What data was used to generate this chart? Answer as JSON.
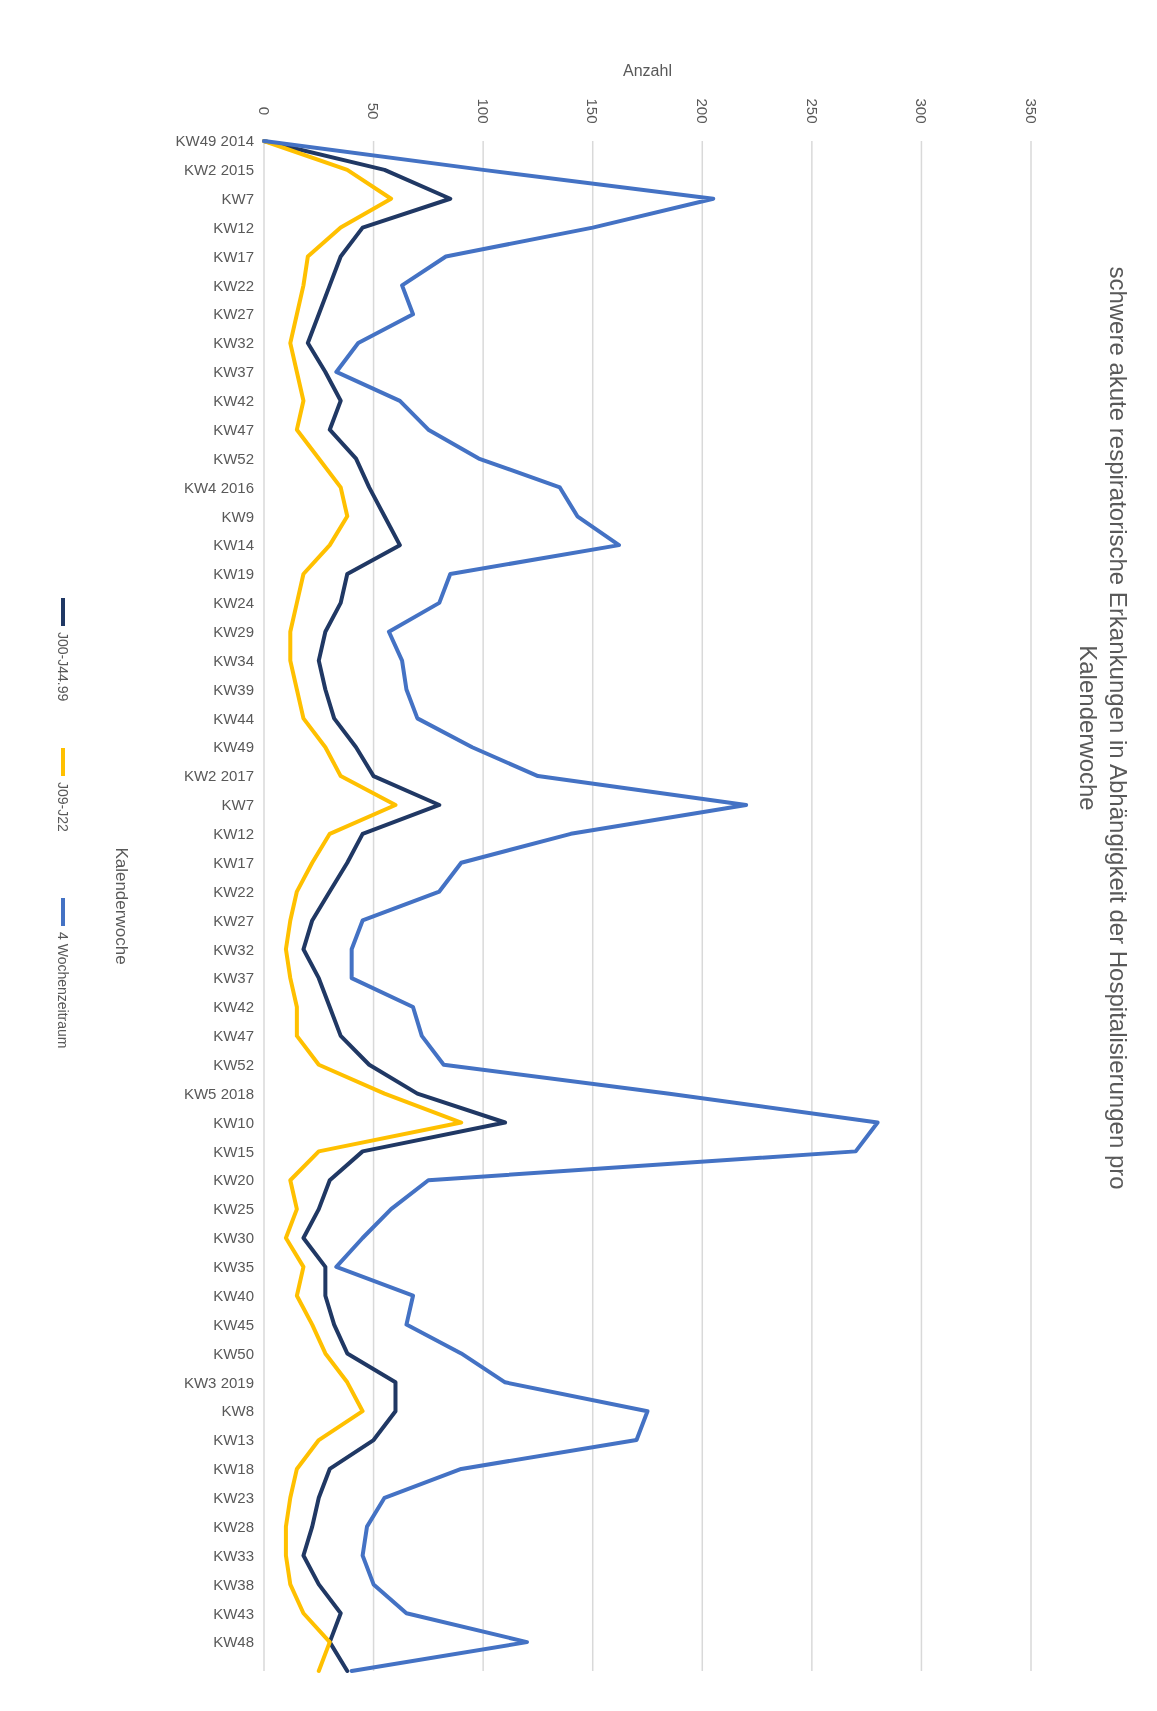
{
  "chart_data": {
    "type": "line",
    "title": "schwere akute respiratorische Erkankungen in Abhängigkeit der Hospitalisierungen pro Kalenderwoche",
    "xlabel": "Anzahl",
    "ylabel": "Kalenderwoche",
    "orientation": "horizontal",
    "categories": [
      "KW49 2014",
      "KW2 2015",
      "KW7",
      "KW12",
      "KW17",
      "KW22",
      "KW27",
      "KW32",
      "KW37",
      "KW42",
      "KW47",
      "KW52",
      "KW4 2016",
      "KW9",
      "KW14",
      "KW19",
      "KW24",
      "KW29",
      "KW34",
      "KW39",
      "KW44",
      "KW49",
      "KW2 2017",
      "KW7",
      "KW12",
      "KW17",
      "KW22",
      "KW27",
      "KW32",
      "KW37",
      "KW42",
      "KW47",
      "KW52",
      "KW5 2018",
      "KW10",
      "KW15",
      "KW20",
      "KW25",
      "KW30",
      "KW35",
      "KW40",
      "KW45",
      "KW50",
      "KW3 2019",
      "KW8",
      "KW13",
      "KW18",
      "KW23",
      "KW28",
      "KW33",
      "KW38",
      "KW43",
      "KW48",
      null
    ],
    "series": [
      {
        "name": "J00-J44.99",
        "color": "#203864",
        "values": [
          0,
          55,
          85,
          45,
          35,
          30,
          25,
          20,
          28,
          35,
          30,
          42,
          48,
          55,
          62,
          38,
          35,
          28,
          25,
          28,
          32,
          42,
          50,
          80,
          45,
          38,
          30,
          22,
          18,
          25,
          30,
          35,
          48,
          70,
          110,
          45,
          30,
          25,
          18,
          28,
          28,
          32,
          38,
          60,
          60,
          50,
          30,
          25,
          22,
          18,
          25,
          35,
          30,
          38
        ]
      },
      {
        "name": "J09-J22",
        "color": "#ffc000",
        "values": [
          0,
          38,
          58,
          35,
          20,
          18,
          15,
          12,
          15,
          18,
          15,
          25,
          35,
          38,
          30,
          18,
          15,
          12,
          12,
          15,
          18,
          28,
          35,
          60,
          30,
          22,
          15,
          12,
          10,
          12,
          15,
          15,
          25,
          55,
          90,
          25,
          12,
          15,
          10,
          18,
          15,
          22,
          28,
          38,
          45,
          25,
          15,
          12,
          10,
          10,
          12,
          18,
          30,
          25
        ]
      },
      {
        "name": "4 Wochenzeitraum",
        "color": "#4472c4",
        "values": [
          0,
          100,
          205,
          150,
          83,
          63,
          68,
          43,
          33,
          62,
          75,
          98,
          135,
          143,
          162,
          85,
          80,
          57,
          63,
          65,
          70,
          95,
          125,
          220,
          140,
          90,
          80,
          45,
          40,
          40,
          68,
          72,
          82,
          185,
          280,
          270,
          75,
          58,
          45,
          33,
          68,
          65,
          90,
          110,
          175,
          170,
          90,
          55,
          47,
          45,
          50,
          65,
          120,
          40
        ]
      }
    ],
    "xlim": [
      0,
      350
    ],
    "xticks": [
      0,
      50,
      100,
      150,
      200,
      250,
      300,
      350
    ],
    "grid": "x",
    "legend": "left",
    "line_style": "solid",
    "marker": "none"
  }
}
